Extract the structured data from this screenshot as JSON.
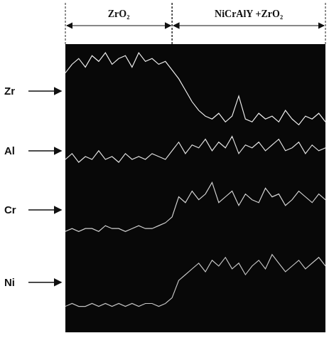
{
  "chart_data": {
    "type": "line",
    "x": [
      0,
      1,
      2,
      3,
      4,
      5,
      6,
      7,
      8,
      9,
      10,
      11,
      12,
      13,
      14,
      15,
      16,
      17,
      18,
      19,
      20,
      21,
      22,
      23,
      24,
      25,
      26,
      27,
      28,
      29,
      30,
      31,
      32,
      33,
      34,
      35,
      36,
      37,
      38,
      39
    ],
    "xlim": [
      0,
      39
    ],
    "ylim": [
      0,
      100
    ],
    "tick_labels": false,
    "grid": false,
    "regions": [
      {
        "label": "ZrO₂",
        "from": 0,
        "to": 16
      },
      {
        "label": "NiCrAlY +ZrO₂",
        "from": 16,
        "to": 39
      }
    ],
    "series": [
      {
        "name": "Zr",
        "color": "#ececec",
        "values": [
          90,
          93,
          95,
          92,
          96,
          94,
          97,
          93,
          95,
          96,
          92,
          97,
          94,
          95,
          93,
          94,
          91,
          88,
          84,
          80,
          77,
          75,
          74,
          76,
          73,
          75,
          82,
          74,
          73,
          76,
          74,
          75,
          73,
          77,
          74,
          72,
          75,
          74,
          76,
          73
        ]
      },
      {
        "name": "Al",
        "color": "#dcdcdc",
        "values": [
          60,
          62,
          59,
          61,
          60,
          63,
          60,
          61,
          59,
          62,
          60,
          61,
          60,
          62,
          61,
          60,
          63,
          66,
          62,
          65,
          64,
          67,
          63,
          66,
          64,
          68,
          62,
          65,
          64,
          66,
          63,
          65,
          67,
          63,
          64,
          66,
          62,
          65,
          63,
          64
        ]
      },
      {
        "name": "Cr",
        "color": "#d0d0d0",
        "values": [
          35,
          36,
          35,
          36,
          36,
          35,
          37,
          36,
          36,
          35,
          36,
          37,
          36,
          36,
          37,
          38,
          40,
          47,
          45,
          49,
          46,
          48,
          52,
          45,
          47,
          49,
          44,
          48,
          46,
          45,
          50,
          47,
          48,
          44,
          46,
          49,
          47,
          45,
          48,
          46
        ]
      },
      {
        "name": "Ni",
        "color": "#c4c4c4",
        "values": [
          9,
          10,
          9,
          9,
          10,
          9,
          10,
          9,
          10,
          9,
          10,
          9,
          10,
          10,
          9,
          10,
          12,
          18,
          20,
          22,
          24,
          21,
          25,
          23,
          26,
          22,
          24,
          20,
          23,
          25,
          22,
          27,
          24,
          21,
          23,
          25,
          22,
          24,
          26,
          23
        ]
      }
    ]
  }
}
